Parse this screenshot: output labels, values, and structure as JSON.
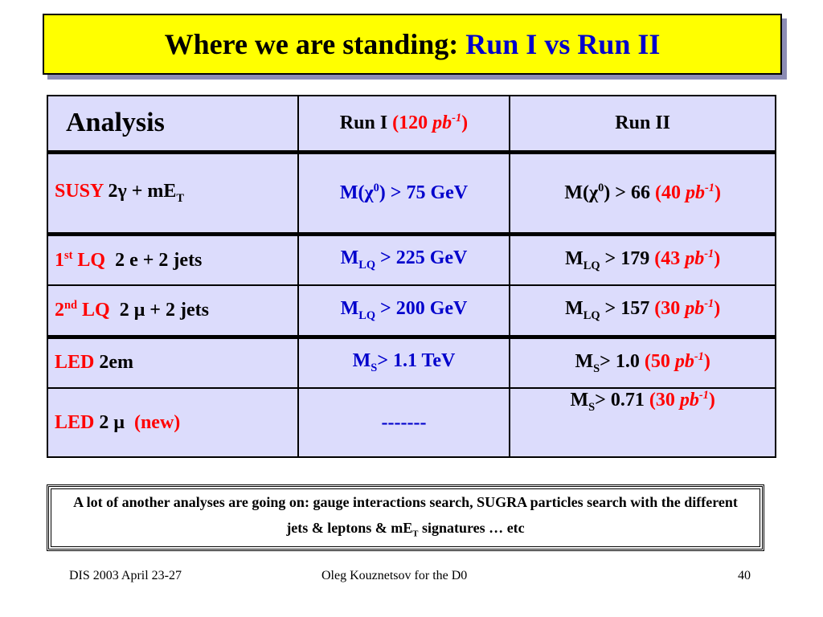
{
  "title": [
    {
      "text": "Where we are standing: "
    },
    {
      "text": "Run I vs Run II",
      "color": "#0000cc"
    }
  ],
  "table": {
    "header": [
      [
        {
          "text": "Analysis"
        }
      ],
      [
        {
          "text": "Run I "
        },
        {
          "text": "(120 ",
          "color": "#ff0000"
        },
        {
          "text": "pb",
          "color": "#ff0000",
          "italic": true
        },
        {
          "text": "-1",
          "color": "#ff0000",
          "italic": true,
          "sup": true
        },
        {
          "text": ")",
          "color": "#ff0000"
        }
      ],
      [
        {
          "text": "Run II"
        }
      ]
    ],
    "rows": [
      [
        [
          {
            "text": "SUSY ",
            "color": "#ff0000"
          },
          {
            "text": "2γ + mE"
          },
          {
            "text": "T",
            "sub": true
          }
        ],
        [
          {
            "text": "M(χ",
            "color": "#0000cc"
          },
          {
            "text": "0",
            "color": "#0000cc",
            "sup": true
          },
          {
            "text": ") > 75 GeV",
            "color": "#0000cc"
          }
        ],
        [
          {
            "text": "M(χ"
          },
          {
            "text": "0",
            "sup": true
          },
          {
            "text": ") > 66 "
          },
          {
            "text": "(40 ",
            "color": "#ff0000"
          },
          {
            "text": "pb",
            "color": "#ff0000",
            "italic": true
          },
          {
            "text": "-1",
            "color": "#ff0000",
            "italic": true,
            "sup": true
          },
          {
            "text": ")",
            "color": "#ff0000"
          }
        ]
      ],
      [
        [
          {
            "text": "1",
            "color": "#ff0000"
          },
          {
            "text": "st",
            "color": "#ff0000",
            "sup": true
          },
          {
            "text": " LQ",
            "color": "#ff0000"
          },
          {
            "text": "  2 e + 2 jets"
          }
        ],
        [
          {
            "text": "M",
            "color": "#0000cc"
          },
          {
            "text": "LQ",
            "color": "#0000cc",
            "sub": true
          },
          {
            "text": " > 225 GeV",
            "color": "#0000cc"
          }
        ],
        [
          {
            "text": "M"
          },
          {
            "text": "LQ",
            "sub": true
          },
          {
            "text": " > 179 "
          },
          {
            "text": "(43 ",
            "color": "#ff0000"
          },
          {
            "text": "pb",
            "color": "#ff0000",
            "italic": true
          },
          {
            "text": "-1",
            "color": "#ff0000",
            "italic": true,
            "sup": true
          },
          {
            "text": ")",
            "color": "#ff0000"
          }
        ]
      ],
      [
        [
          {
            "text": "2",
            "color": "#ff0000"
          },
          {
            "text": "nd",
            "color": "#ff0000",
            "sup": true
          },
          {
            "text": " LQ",
            "color": "#ff0000"
          },
          {
            "text": "  2 μ + 2 jets"
          }
        ],
        [
          {
            "text": "M",
            "color": "#0000cc"
          },
          {
            "text": "LQ",
            "color": "#0000cc",
            "sub": true
          },
          {
            "text": " > 200 GeV",
            "color": "#0000cc"
          }
        ],
        [
          {
            "text": "M"
          },
          {
            "text": "LQ",
            "sub": true
          },
          {
            "text": " > 157 "
          },
          {
            "text": "(30 ",
            "color": "#ff0000"
          },
          {
            "text": "pb",
            "color": "#ff0000",
            "italic": true
          },
          {
            "text": "-1",
            "color": "#ff0000",
            "italic": true,
            "sup": true
          },
          {
            "text": ")",
            "color": "#ff0000"
          }
        ]
      ],
      [
        [
          {
            "text": "LED ",
            "color": "#ff0000"
          },
          {
            "text": "2em"
          }
        ],
        [
          {
            "text": "M",
            "color": "#0000cc"
          },
          {
            "text": "S",
            "color": "#0000cc",
            "sub": true
          },
          {
            "text": "> 1.1 TeV",
            "color": "#0000cc"
          }
        ],
        [
          {
            "text": "M"
          },
          {
            "text": "S",
            "sub": true
          },
          {
            "text": "> 1.0 "
          },
          {
            "text": "(50 ",
            "color": "#ff0000"
          },
          {
            "text": "pb",
            "color": "#ff0000",
            "italic": true
          },
          {
            "text": "-1",
            "color": "#ff0000",
            "italic": true,
            "sup": true
          },
          {
            "text": ")",
            "color": "#ff0000"
          }
        ]
      ],
      [
        [
          {
            "text": "LED ",
            "color": "#ff0000"
          },
          {
            "text": "2 μ"
          },
          {
            "text": "  (new)",
            "color": "#ff0000"
          }
        ],
        [
          {
            "text": "-------",
            "color": "#0000cc"
          }
        ],
        [
          {
            "text": "M"
          },
          {
            "text": "S",
            "sub": true
          },
          {
            "text": "> 0.71 "
          },
          {
            "text": "(30 ",
            "color": "#ff0000"
          },
          {
            "text": "pb",
            "color": "#ff0000",
            "italic": true
          },
          {
            "text": "-1",
            "color": "#ff0000",
            "italic": true,
            "sup": true
          },
          {
            "text": ")",
            "color": "#ff0000"
          }
        ]
      ]
    ]
  },
  "note": [
    {
      "text": "A lot of another analyses are going on: gauge interactions search, SUGRA particles search with the different  jets & leptons & mE"
    },
    {
      "text": "T",
      "sub": true
    },
    {
      "text": " signatures … "
    },
    {
      "text": "etc"
    }
  ],
  "footer": {
    "left": "DIS 2003 April 23-27",
    "center": "Oleg Kouznetsov  for the D0",
    "right": "40"
  }
}
